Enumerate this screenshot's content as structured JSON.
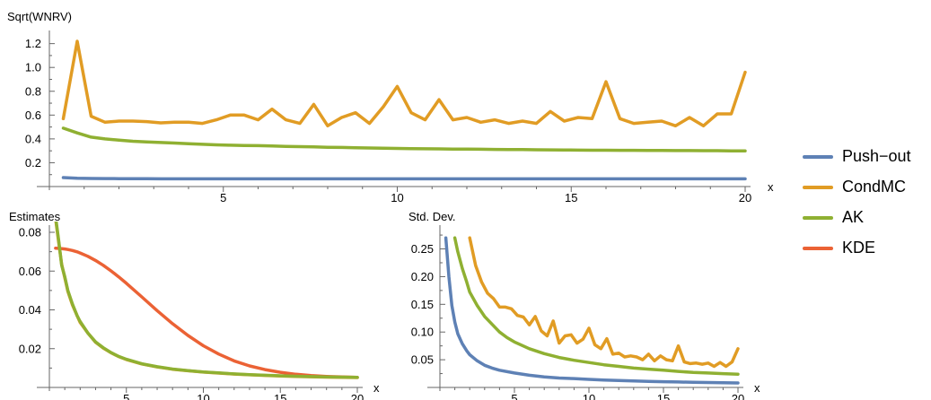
{
  "colors": {
    "push_out": "#5e81b5",
    "cond_mc": "#e19c24",
    "ak": "#8fb032",
    "kde": "#eb6235"
  },
  "legend": {
    "items": [
      {
        "label": "Push−out",
        "color": "#5e81b5"
      },
      {
        "label": "CondMC",
        "color": "#e19c24"
      },
      {
        "label": "AK",
        "color": "#8fb032"
      },
      {
        "label": "KDE",
        "color": "#eb6235"
      }
    ]
  },
  "chart_data": [
    {
      "type": "line",
      "title": "",
      "ylabel": "Sqrt(WNRV)",
      "xlabel": "x",
      "xlim": [
        0,
        20
      ],
      "ylim": [
        0,
        1.25
      ],
      "xticks": [
        5,
        10,
        15,
        20
      ],
      "yticks": [
        0.2,
        0.4,
        0.6,
        0.8,
        1.0,
        1.2
      ],
      "ytick_labels": [
        "0.2",
        "0.4",
        "0.6",
        "0.8",
        "1.0",
        "1.2"
      ],
      "x": [
        0.4,
        0.8,
        1.2,
        1.6,
        2.0,
        2.4,
        2.8,
        3.2,
        3.6,
        4.0,
        4.4,
        4.8,
        5.2,
        5.6,
        6.0,
        6.4,
        6.8,
        7.2,
        7.6,
        8.0,
        8.4,
        8.8,
        9.2,
        9.6,
        10.0,
        10.4,
        10.8,
        11.2,
        11.6,
        12.0,
        12.4,
        12.8,
        13.2,
        13.6,
        14.0,
        14.4,
        14.8,
        15.2,
        15.6,
        16.0,
        16.4,
        16.8,
        17.2,
        17.6,
        18.0,
        18.4,
        18.8,
        19.2,
        19.6,
        20.0
      ],
      "series": [
        {
          "name": "Push−out",
          "color": "#5e81b5",
          "values": [
            0.075,
            0.07,
            0.068,
            0.067,
            0.066,
            0.066,
            0.066,
            0.065,
            0.065,
            0.065,
            0.065,
            0.065,
            0.065,
            0.065,
            0.065,
            0.065,
            0.065,
            0.065,
            0.065,
            0.065,
            0.065,
            0.065,
            0.065,
            0.065,
            0.065,
            0.065,
            0.065,
            0.065,
            0.065,
            0.065,
            0.065,
            0.065,
            0.065,
            0.065,
            0.065,
            0.065,
            0.065,
            0.065,
            0.065,
            0.065,
            0.065,
            0.065,
            0.065,
            0.065,
            0.065,
            0.065,
            0.065,
            0.065,
            0.065,
            0.065
          ]
        },
        {
          "name": "CondMC",
          "color": "#e19c24",
          "values": [
            0.57,
            1.22,
            0.59,
            0.54,
            0.55,
            0.55,
            0.545,
            0.535,
            0.54,
            0.54,
            0.53,
            0.56,
            0.6,
            0.6,
            0.56,
            0.65,
            0.56,
            0.53,
            0.69,
            0.51,
            0.58,
            0.62,
            0.53,
            0.67,
            0.84,
            0.62,
            0.56,
            0.73,
            0.56,
            0.58,
            0.54,
            0.56,
            0.53,
            0.55,
            0.53,
            0.63,
            0.55,
            0.58,
            0.57,
            0.88,
            0.57,
            0.53,
            0.54,
            0.55,
            0.51,
            0.58,
            0.51,
            0.61,
            0.61,
            0.96
          ]
        },
        {
          "name": "AK",
          "color": "#8fb032",
          "values": [
            0.49,
            0.45,
            0.415,
            0.4,
            0.39,
            0.38,
            0.375,
            0.37,
            0.365,
            0.36,
            0.355,
            0.35,
            0.347,
            0.345,
            0.343,
            0.34,
            0.337,
            0.335,
            0.333,
            0.33,
            0.328,
            0.326,
            0.324,
            0.322,
            0.32,
            0.318,
            0.317,
            0.316,
            0.315,
            0.314,
            0.313,
            0.312,
            0.311,
            0.31,
            0.309,
            0.308,
            0.307,
            0.306,
            0.305,
            0.305,
            0.304,
            0.304,
            0.303,
            0.303,
            0.302,
            0.302,
            0.301,
            0.301,
            0.3,
            0.3
          ]
        }
      ]
    },
    {
      "type": "line",
      "title": "",
      "ylabel": "Estimates",
      "xlabel": "x",
      "xlim": [
        0,
        20
      ],
      "ylim": [
        0,
        0.08
      ],
      "xticks": [
        5,
        10,
        15,
        20
      ],
      "yticks": [
        0.02,
        0.04,
        0.06,
        0.08
      ],
      "ytick_labels": [
        "0.02",
        "0.04",
        "0.06",
        "0.08"
      ],
      "x": [
        0.4,
        0.6,
        0.8,
        1.0,
        1.2,
        1.5,
        1.8,
        2.0,
        2.5,
        3.0,
        3.5,
        4.0,
        4.5,
        5.0,
        6.0,
        7.0,
        8.0,
        9.0,
        10.0,
        11.0,
        12.0,
        13.0,
        14.0,
        15.0,
        16.0,
        17.0,
        18.0,
        19.0,
        20.0
      ],
      "series": [
        {
          "name": "KDE",
          "color": "#eb6235",
          "values": [
            0.0718,
            0.0717,
            0.0716,
            0.0714,
            0.0711,
            0.0706,
            0.0699,
            0.0693,
            0.0676,
            0.0655,
            0.063,
            0.0601,
            0.057,
            0.0537,
            0.0467,
            0.0396,
            0.0329,
            0.0268,
            0.0215,
            0.0172,
            0.0137,
            0.0111,
            0.0092,
            0.0078,
            0.0068,
            0.0061,
            0.0057,
            0.0054,
            0.0052
          ]
        },
        {
          "name": "AK",
          "color": "#8fb032",
          "values": [
            0.088,
            0.076,
            0.063,
            0.057,
            0.05,
            0.043,
            0.037,
            0.034,
            0.028,
            0.0235,
            0.0205,
            0.018,
            0.016,
            0.0145,
            0.0122,
            0.0107,
            0.0095,
            0.0087,
            0.008,
            0.0075,
            0.007,
            0.0066,
            0.0063,
            0.006,
            0.0058,
            0.0056,
            0.0054,
            0.0053,
            0.0052
          ]
        },
        {
          "name": "CondMC",
          "color": "#e19c24",
          "values": [
            0.087,
            0.075,
            0.0635,
            0.0565,
            0.0495,
            0.0425,
            0.037,
            0.0335,
            0.028,
            0.0233,
            0.0203,
            0.0179,
            0.0159,
            0.0144,
            0.0121,
            0.0106,
            0.0094,
            0.0086,
            0.0079,
            0.0074,
            0.0069,
            0.0065,
            0.0062,
            0.0059,
            0.0057,
            0.0055,
            0.0053,
            0.0052,
            0.0051
          ]
        }
      ]
    },
    {
      "type": "line",
      "title": "",
      "ylabel": "Std. Dev.",
      "xlabel": "x",
      "xlim": [
        0,
        20
      ],
      "ylim": [
        0,
        0.28
      ],
      "xticks": [
        5,
        10,
        15,
        20
      ],
      "yticks": [
        0.05,
        0.1,
        0.15,
        0.2,
        0.25
      ],
      "ytick_labels": [
        "0.05",
        "0.10",
        "0.15",
        "0.20",
        "0.25"
      ],
      "series": [
        {
          "name": "Push−out",
          "color": "#5e81b5",
          "x": [
            0.4,
            0.6,
            0.8,
            1.0,
            1.2,
            1.5,
            1.8,
            2.0,
            2.5,
            3.0,
            3.5,
            4.0,
            5.0,
            6.0,
            7.0,
            8.0,
            9.0,
            10.0,
            11.0,
            12.0,
            13.0,
            14.0,
            15.0,
            16.0,
            17.0,
            18.0,
            19.0,
            20.0
          ],
          "values": [
            0.27,
            0.2,
            0.148,
            0.118,
            0.097,
            0.079,
            0.066,
            0.059,
            0.048,
            0.04,
            0.035,
            0.031,
            0.026,
            0.022,
            0.019,
            0.017,
            0.016,
            0.0145,
            0.0135,
            0.0125,
            0.0117,
            0.011,
            0.0104,
            0.0098,
            0.0093,
            0.0089,
            0.0085,
            0.0081
          ]
        },
        {
          "name": "AK",
          "color": "#8fb032",
          "x": [
            1.0,
            1.2,
            1.5,
            1.8,
            2.0,
            2.5,
            3.0,
            3.5,
            4.0,
            4.5,
            5.0,
            6.0,
            7.0,
            8.0,
            9.0,
            10.0,
            11.0,
            12.0,
            13.0,
            14.0,
            15.0,
            16.0,
            17.0,
            18.0,
            19.0,
            20.0
          ],
          "values": [
            0.27,
            0.245,
            0.215,
            0.19,
            0.172,
            0.148,
            0.128,
            0.114,
            0.1,
            0.09,
            0.082,
            0.07,
            0.061,
            0.054,
            0.049,
            0.045,
            0.041,
            0.038,
            0.035,
            0.033,
            0.031,
            0.029,
            0.027,
            0.026,
            0.025,
            0.024
          ]
        },
        {
          "name": "CondMC",
          "color": "#e19c24",
          "x": [
            2.0,
            2.4,
            2.8,
            3.2,
            3.6,
            4.0,
            4.4,
            4.8,
            5.2,
            5.6,
            6.0,
            6.4,
            6.8,
            7.2,
            7.6,
            8.0,
            8.4,
            8.8,
            9.2,
            9.6,
            10.0,
            10.4,
            10.8,
            11.2,
            11.6,
            12.0,
            12.4,
            12.8,
            13.2,
            13.6,
            14.0,
            14.4,
            14.8,
            15.2,
            15.6,
            16.0,
            16.4,
            16.8,
            17.2,
            17.6,
            18.0,
            18.4,
            18.8,
            19.2,
            19.6,
            20.0
          ],
          "values": [
            0.27,
            0.22,
            0.19,
            0.17,
            0.16,
            0.145,
            0.145,
            0.142,
            0.13,
            0.127,
            0.113,
            0.128,
            0.102,
            0.093,
            0.12,
            0.08,
            0.093,
            0.095,
            0.08,
            0.087,
            0.107,
            0.077,
            0.07,
            0.088,
            0.06,
            0.062,
            0.055,
            0.057,
            0.055,
            0.05,
            0.06,
            0.048,
            0.057,
            0.05,
            0.048,
            0.075,
            0.046,
            0.043,
            0.044,
            0.042,
            0.044,
            0.038,
            0.045,
            0.038,
            0.046,
            0.07
          ]
        }
      ]
    }
  ]
}
